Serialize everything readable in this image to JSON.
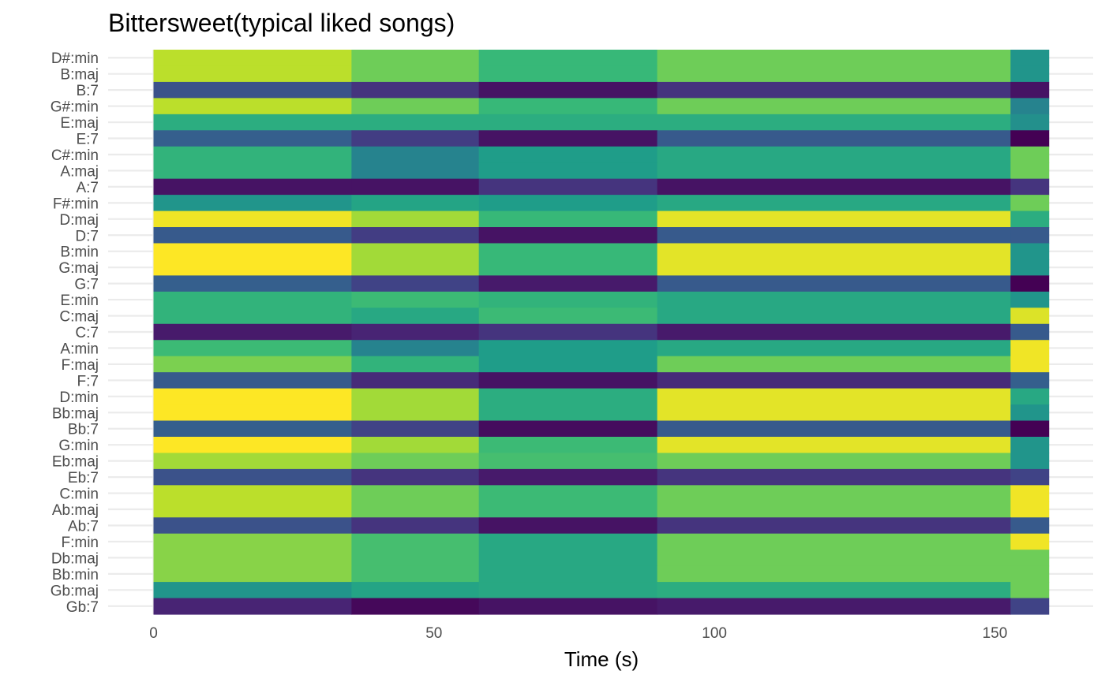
{
  "chart_data": {
    "type": "heatmap",
    "title": "Bittersweet(typical liked songs)",
    "xlabel": "Time (s)",
    "ylabel": "",
    "xlim": [
      0,
      160
    ],
    "x_ticks": [
      0,
      50,
      100,
      150
    ],
    "time_segments": [
      [
        0,
        35.3
      ],
      [
        35.3,
        58
      ],
      [
        58,
        89.8
      ],
      [
        89.8,
        152.8
      ],
      [
        152.8,
        159.6
      ]
    ],
    "chords": [
      "D#:min",
      "B:maj",
      "B:7",
      "G#:min",
      "E:maj",
      "E:7",
      "C#:min",
      "A:maj",
      "A:7",
      "F#:min",
      "D:maj",
      "D:7",
      "B:min",
      "G:maj",
      "G:7",
      "E:min",
      "C:maj",
      "C:7",
      "A:min",
      "F:maj",
      "F:7",
      "D:min",
      "Bb:maj",
      "Bb:7",
      "G:min",
      "Eb:maj",
      "Eb:7",
      "C:min",
      "Ab:maj",
      "Ab:7",
      "F:min",
      "Db:maj",
      "Bb:min",
      "Gb:maj",
      "Gb:7"
    ],
    "values": [
      [
        0.9,
        0.78,
        0.67,
        0.78,
        0.52
      ],
      [
        0.9,
        0.78,
        0.67,
        0.78,
        0.52
      ],
      [
        0.25,
        0.15,
        0.05,
        0.15,
        0.05
      ],
      [
        0.9,
        0.78,
        0.67,
        0.78,
        0.45
      ],
      [
        0.62,
        0.62,
        0.62,
        0.62,
        0.5
      ],
      [
        0.3,
        0.18,
        0.05,
        0.28,
        0.0
      ],
      [
        0.65,
        0.45,
        0.55,
        0.6,
        0.78
      ],
      [
        0.65,
        0.45,
        0.55,
        0.6,
        0.78
      ],
      [
        0.05,
        0.05,
        0.15,
        0.05,
        0.15
      ],
      [
        0.52,
        0.58,
        0.55,
        0.6,
        0.78
      ],
      [
        0.98,
        0.86,
        0.67,
        0.96,
        0.62
      ],
      [
        0.28,
        0.18,
        0.05,
        0.28,
        0.28
      ],
      [
        1.0,
        0.86,
        0.67,
        0.96,
        0.52
      ],
      [
        1.0,
        0.86,
        0.67,
        0.96,
        0.52
      ],
      [
        0.3,
        0.2,
        0.07,
        0.28,
        0.0
      ],
      [
        0.65,
        0.68,
        0.65,
        0.6,
        0.52
      ],
      [
        0.65,
        0.6,
        0.68,
        0.6,
        0.95
      ],
      [
        0.07,
        0.1,
        0.15,
        0.07,
        0.28
      ],
      [
        0.68,
        0.45,
        0.55,
        0.6,
        0.98
      ],
      [
        0.8,
        0.65,
        0.55,
        0.78,
        0.98
      ],
      [
        0.28,
        0.12,
        0.05,
        0.12,
        0.3
      ],
      [
        1.0,
        0.86,
        0.62,
        0.96,
        0.6
      ],
      [
        1.0,
        0.86,
        0.62,
        0.96,
        0.52
      ],
      [
        0.3,
        0.2,
        0.03,
        0.28,
        0.0
      ],
      [
        1.0,
        0.86,
        0.68,
        0.96,
        0.52
      ],
      [
        0.86,
        0.78,
        0.7,
        0.78,
        0.52
      ],
      [
        0.25,
        0.15,
        0.07,
        0.15,
        0.2
      ],
      [
        0.9,
        0.78,
        0.68,
        0.78,
        0.98
      ],
      [
        0.9,
        0.78,
        0.68,
        0.78,
        0.98
      ],
      [
        0.25,
        0.15,
        0.05,
        0.15,
        0.28
      ],
      [
        0.82,
        0.7,
        0.6,
        0.78,
        0.98
      ],
      [
        0.82,
        0.7,
        0.6,
        0.78,
        0.78
      ],
      [
        0.82,
        0.7,
        0.6,
        0.78,
        0.78
      ],
      [
        0.52,
        0.58,
        0.6,
        0.62,
        0.78
      ],
      [
        0.1,
        0.02,
        0.05,
        0.07,
        0.2
      ]
    ],
    "colorscale": "viridis",
    "legend": "none",
    "grid": true
  }
}
